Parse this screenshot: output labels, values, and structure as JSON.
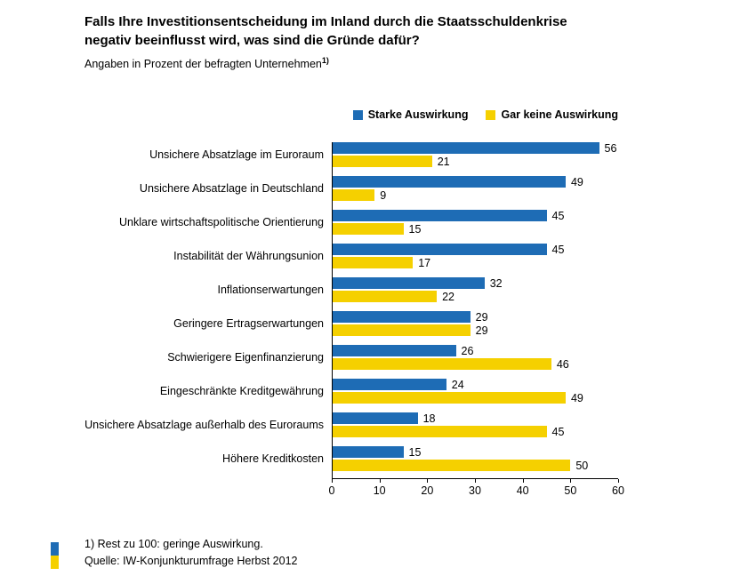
{
  "header": {
    "title_line1": "Falls Ihre Investitionsentscheidung im Inland durch die Staatsschuldenkrise",
    "title_line2": "negativ beeinflusst wird, was sind die Gründe dafür?",
    "subtitle": "Angaben in Prozent der befragten Unternehmen",
    "subtitle_sup": "1)"
  },
  "chart_data": {
    "type": "bar",
    "orientation": "horizontal",
    "categories": [
      "Unsichere Absatzlage im Euroraum",
      "Unsichere Absatzlage in Deutschland",
      "Unklare wirtschaftspolitische Orientierung",
      "Instabilität der Währungsunion",
      "Inflationserwartungen",
      "Geringere Ertragserwartungen",
      "Schwierigere Eigenfinanzierung",
      "Eingeschränkte Kreditgewährung",
      "Unsichere Absatzlage außerhalb des Euroraums",
      "Höhere Kreditkosten"
    ],
    "series": [
      {
        "name": "Starke Auswirkung",
        "color": "#1e6cb5",
        "values": [
          56,
          49,
          45,
          45,
          32,
          29,
          26,
          24,
          18,
          15
        ]
      },
      {
        "name": "Gar keine Auswirkung",
        "color": "#f5d000",
        "values": [
          21,
          9,
          15,
          17,
          22,
          29,
          46,
          49,
          45,
          50
        ]
      }
    ],
    "xlim": [
      0,
      60
    ],
    "xticks": [
      0,
      10,
      20,
      30,
      40,
      50,
      60
    ],
    "grid": false,
    "legend_position": "top",
    "value_labels": true
  },
  "footnotes": {
    "note": "1) Rest zu 100: geringe Auswirkung.",
    "source": "Quelle: IW-Konjunkturumfrage Herbst 2012"
  }
}
